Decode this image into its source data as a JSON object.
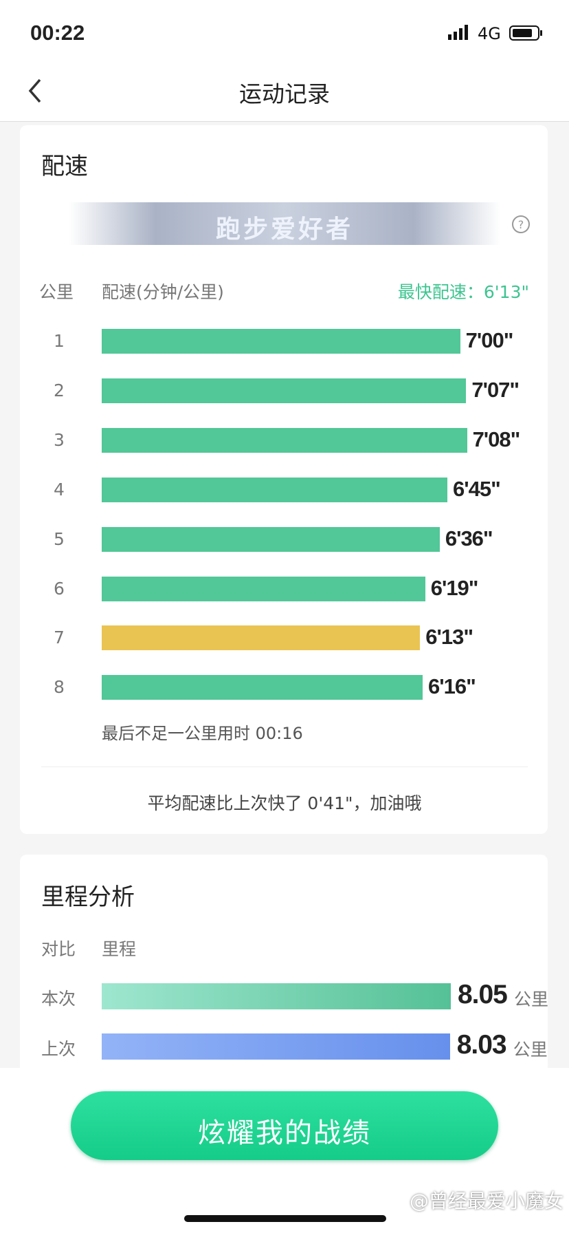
{
  "status_bar": {
    "time": "00:22",
    "network": "4G"
  },
  "nav": {
    "title": "运动记录"
  },
  "pace_card": {
    "title": "配速",
    "badge": "跑步爱好者",
    "columns": [
      "公里",
      "配速(分钟/公里)"
    ],
    "fastest_label": "最快配速：",
    "fastest_value": "6'13\"",
    "bar_color": "#52c797",
    "fastest_color": "#eac452",
    "rows": [
      {
        "km": 1,
        "pace": "7'00\""
      },
      {
        "km": 2,
        "pace": "7'07\""
      },
      {
        "km": 3,
        "pace": "7'08\""
      },
      {
        "km": 4,
        "pace": "6'45\""
      },
      {
        "km": 5,
        "pace": "6'36\""
      },
      {
        "km": 6,
        "pace": "6'19\""
      },
      {
        "km": 7,
        "pace": "6'13\""
      },
      {
        "km": 8,
        "pace": "6'16\""
      }
    ],
    "remainder": "最后不足一公里用时 00:16",
    "summary": "平均配速比上次快了 0'41\"，加油哦"
  },
  "distance_card": {
    "title": "里程分析",
    "columns": [
      "对比",
      "里程"
    ],
    "unit": "公里",
    "rows": [
      {
        "label": "本次",
        "value": 8.05,
        "colors": [
          "#9ee6cf",
          "#55c196"
        ]
      },
      {
        "label": "上次",
        "value": 8.03,
        "colors": [
          "#93b3f7",
          "#6690ec"
        ]
      }
    ]
  },
  "button": "炫耀我的战绩",
  "watermark": "@曾经最爱小魔女"
}
